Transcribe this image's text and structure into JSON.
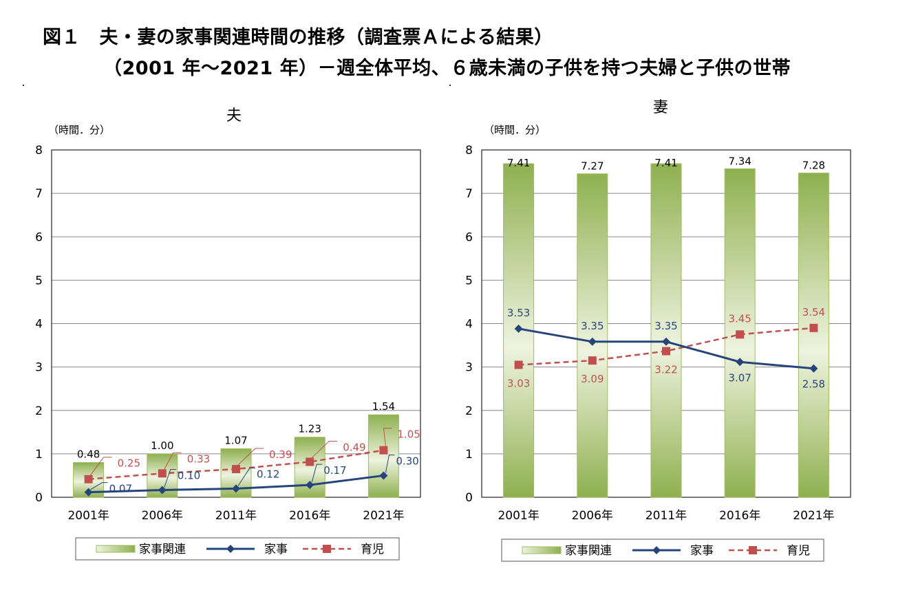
{
  "figure": {
    "title_line1": "図１　夫・妻の家事関連時間の推移（調査票Ａによる結果）",
    "title_line2": "（2001 年～2021 年）－週全体平均、６歳未満の子供を持つ夫婦と子供の世帯"
  },
  "colors": {
    "bar_light": "#eef3df",
    "bar_dark": "#8fb04f",
    "bar_border": "#9dbb62",
    "kaji_line": "#25447a",
    "ikuji_line": "#c0504d",
    "ikuji_fill": "#c0504d",
    "grid": "#888888"
  },
  "chart_data": [
    {
      "type": "bar",
      "title": "夫",
      "unit_label": "（時間．分）",
      "categories": [
        "2001年",
        "2006年",
        "2011年",
        "2016年",
        "2021年"
      ],
      "ylim": [
        0,
        8
      ],
      "yticks": [
        "0",
        "1",
        "2",
        "3",
        "4",
        "5",
        "6",
        "7",
        "8"
      ],
      "grid": true,
      "legend_position": "bottom",
      "series": [
        {
          "name": "家事関連",
          "type": "bar",
          "values": [
            0.8,
            1.0,
            1.1167,
            1.3833,
            1.9
          ],
          "labels": [
            "0.48",
            "1.00",
            "1.07",
            "1.23",
            "1.54"
          ]
        },
        {
          "name": "家事",
          "type": "line",
          "marker": "diamond",
          "values": [
            0.1167,
            0.1667,
            0.2,
            0.2833,
            0.5
          ],
          "labels": [
            "0.07",
            "0.10",
            "0.12",
            "0.17",
            "0.30"
          ]
        },
        {
          "name": "育児",
          "type": "line",
          "dashed": true,
          "marker": "square",
          "values": [
            0.4167,
            0.55,
            0.65,
            0.8167,
            1.0833
          ],
          "labels": [
            "0.25",
            "0.33",
            "0.39",
            "0.49",
            "1.05"
          ]
        }
      ]
    },
    {
      "type": "bar",
      "title": "妻",
      "unit_label": "（時間．分）",
      "categories": [
        "2001年",
        "2006年",
        "2011年",
        "2016年",
        "2021年"
      ],
      "ylim": [
        0,
        8
      ],
      "yticks": [
        "0",
        "1",
        "2",
        "3",
        "4",
        "5",
        "6",
        "7",
        "8"
      ],
      "grid": true,
      "legend_position": "bottom",
      "series": [
        {
          "name": "家事関連",
          "type": "bar",
          "values": [
            7.6833,
            7.45,
            7.6833,
            7.5667,
            7.4667
          ],
          "labels": [
            "7.41",
            "7.27",
            "7.41",
            "7.34",
            "7.28"
          ]
        },
        {
          "name": "家事",
          "type": "line",
          "marker": "diamond",
          "values": [
            3.8833,
            3.5833,
            3.5833,
            3.1167,
            2.9667
          ],
          "labels": [
            "3.53",
            "3.35",
            "3.35",
            "3.07",
            "2.58"
          ]
        },
        {
          "name": "育児",
          "type": "line",
          "dashed": true,
          "marker": "square",
          "values": [
            3.05,
            3.15,
            3.3667,
            3.75,
            3.9
          ],
          "labels": [
            "3.03",
            "3.09",
            "3.22",
            "3.45",
            "3.54"
          ]
        }
      ]
    }
  ]
}
